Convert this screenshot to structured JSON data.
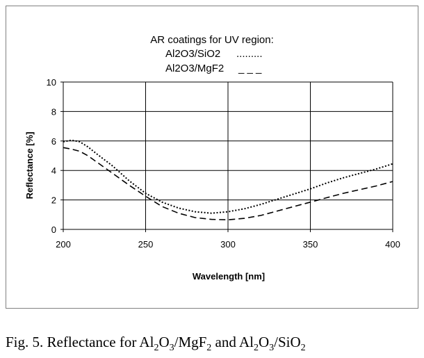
{
  "chart_data": {
    "type": "line",
    "title": "AR coatings  for UV region:",
    "legend": [
      {
        "label": "Al2O3/SiO2",
        "marker": "........."
      },
      {
        "label": "Al2O3/MgF2",
        "marker": "_ _ _"
      }
    ],
    "xlabel": "Wavelength [nm]",
    "ylabel": "Reflectance [%]",
    "xlim": [
      200,
      400
    ],
    "ylim": [
      0,
      10
    ],
    "xticks": [
      200,
      250,
      300,
      350,
      400
    ],
    "yticks": [
      0,
      2,
      4,
      6,
      8,
      10
    ],
    "grid": true,
    "series": [
      {
        "name": "Al2O3/SiO2",
        "style": "dotted",
        "x": [
          200,
          205,
          210,
          215,
          220,
          230,
          240,
          250,
          260,
          270,
          280,
          290,
          300,
          310,
          320,
          330,
          340,
          350,
          360,
          370,
          380,
          390,
          400
        ],
        "y": [
          5.95,
          6.05,
          5.95,
          5.6,
          5.15,
          4.3,
          3.3,
          2.45,
          1.85,
          1.45,
          1.2,
          1.1,
          1.2,
          1.4,
          1.7,
          2.05,
          2.4,
          2.75,
          3.15,
          3.5,
          3.8,
          4.1,
          4.45
        ]
      },
      {
        "name": "Al2O3/MgF2",
        "style": "dashed",
        "x": [
          200,
          205,
          210,
          215,
          220,
          230,
          240,
          250,
          260,
          270,
          280,
          290,
          300,
          310,
          320,
          330,
          340,
          350,
          360,
          370,
          380,
          390,
          400
        ],
        "y": [
          5.55,
          5.45,
          5.3,
          5.0,
          4.6,
          3.8,
          3.0,
          2.25,
          1.55,
          1.1,
          0.8,
          0.68,
          0.65,
          0.75,
          0.95,
          1.25,
          1.55,
          1.85,
          2.15,
          2.45,
          2.7,
          2.95,
          3.25
        ]
      }
    ]
  },
  "caption": {
    "prefix": "Fig. 5.  Reflectance for Al",
    "sub1": "2",
    "t1": "O",
    "sub2": "3",
    "t2": "/MgF",
    "sub3": "2",
    "t3": " and Al",
    "sub4": "2",
    "t4": "O",
    "sub5": "3",
    "t5": "/SiO",
    "sub6": "2"
  }
}
